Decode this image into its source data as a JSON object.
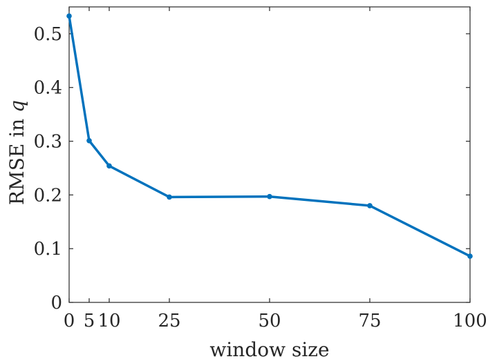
{
  "chart_data": {
    "type": "line",
    "x": [
      0,
      5,
      10,
      25,
      50,
      75,
      100
    ],
    "series": [
      {
        "values": [
          0.533,
          0.301,
          0.254,
          0.196,
          0.197,
          0.18,
          0.086
        ]
      }
    ],
    "xlabel": "window size",
    "ylabel_prefix": "RMSE in ",
    "ylabel_var": "q",
    "xticks": [
      0,
      5,
      10,
      25,
      50,
      75,
      100
    ],
    "xtick_labels": [
      "0",
      "5",
      "10",
      "25",
      "50",
      "75",
      "100"
    ],
    "yticks": [
      0,
      0.1,
      0.2,
      0.3,
      0.4,
      0.5
    ],
    "ytick_labels": [
      "0",
      "0.1",
      "0.2",
      "0.3",
      "0.4",
      "0.5"
    ],
    "xlim": [
      0,
      100
    ],
    "ylim": [
      0,
      0.55
    ],
    "grid": false,
    "colors": {
      "line": "#0072BD",
      "axis": "#262626"
    }
  }
}
